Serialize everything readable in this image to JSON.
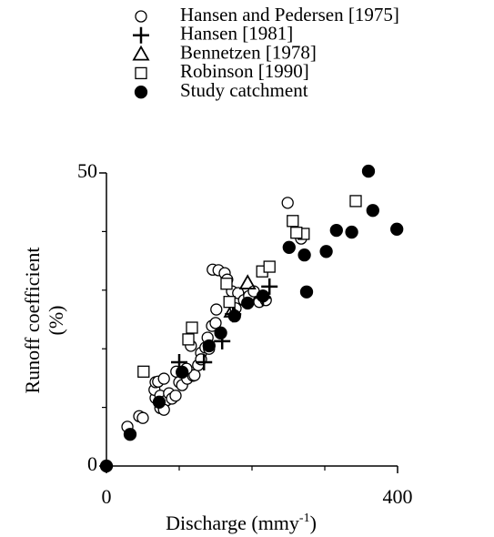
{
  "chart_data": {
    "type": "scatter",
    "xlabel": {
      "text": "Discharge (mmy",
      "sup": "-1",
      "end": ")"
    },
    "ylabel": [
      "Runoff coefficient",
      "(%)"
    ],
    "xlim": [
      0,
      400
    ],
    "ylim": [
      0,
      50
    ],
    "xticks": [
      0,
      400
    ],
    "yticks": [
      0,
      50
    ],
    "xminor_ticks": [
      100,
      200,
      300
    ],
    "yminor_ticks": [
      10,
      20,
      30,
      40
    ],
    "legend": "top",
    "series": [
      {
        "name": "Hansen and Pedersen [1975]",
        "marker": "open-circle",
        "color": "#000000",
        "x": [
          28.8,
          45,
          50,
          67.5,
          66,
          67.5,
          71,
          74,
          79,
          82.5,
          86,
          90,
          95,
          96,
          100,
          104,
          111,
          119,
          116,
          121,
          126,
          130,
          136,
          139,
          141,
          145,
          150,
          151,
          146,
          154,
          162.5,
          166,
          172.5,
          181,
          177.5,
          189,
          196,
          202.5,
          210,
          219,
          249,
          267.5,
          74,
          79,
          110,
          130
        ],
        "values": [
          6.7,
          8.5,
          8.2,
          11.6,
          13.0,
          14.3,
          14.4,
          12.0,
          14.9,
          11.2,
          12.4,
          11.5,
          12.0,
          16.1,
          14.3,
          13.8,
          14.9,
          15.4,
          20.5,
          15.5,
          17.2,
          19.3,
          20.2,
          21.9,
          20.0,
          23.9,
          24.4,
          26.7,
          33.5,
          33.4,
          32.9,
          31.8,
          29.8,
          29.5,
          26.9,
          28.3,
          29.0,
          29.8,
          28.0,
          28.3,
          44.9,
          38.8,
          9.9,
          9.6,
          16.6,
          18.2
        ]
      },
      {
        "name": "Hansen [1981]",
        "marker": "plus",
        "color": "#000000",
        "x": [
          100,
          134,
          159,
          174,
          224,
          215
        ],
        "values": [
          17.7,
          17.7,
          21.3,
          25.9,
          30.6,
          28.7
        ]
      },
      {
        "name": "Bennetzen [1978]",
        "marker": "triangle",
        "color": "#000000",
        "x": [
          194,
          172.5
        ],
        "values": [
          31.2,
          26.4
        ]
      },
      {
        "name": "Robinson [1990]",
        "marker": "open-square",
        "color": "#000000",
        "x": [
          51,
          112.5,
          117.5,
          165,
          169,
          214,
          224,
          256,
          271,
          342.5,
          261
        ],
        "values": [
          16.1,
          21.6,
          23.6,
          31.1,
          28.0,
          33.2,
          34.0,
          41.8,
          39.6,
          45.2,
          39.8
        ]
      },
      {
        "name": "Study catchment",
        "marker": "filled-circle",
        "color": "#000000",
        "x": [
          0,
          32.5,
          72.5,
          104,
          141,
          157,
          176,
          194,
          215,
          251,
          272,
          275,
          302,
          316,
          337,
          360,
          366,
          399
        ],
        "values": [
          0,
          5.4,
          10.9,
          16,
          20.5,
          22.7,
          25.6,
          27.8,
          29,
          37.3,
          36,
          29.7,
          36.6,
          40.2,
          39.9,
          50.3,
          43.6,
          40.4
        ]
      }
    ]
  }
}
